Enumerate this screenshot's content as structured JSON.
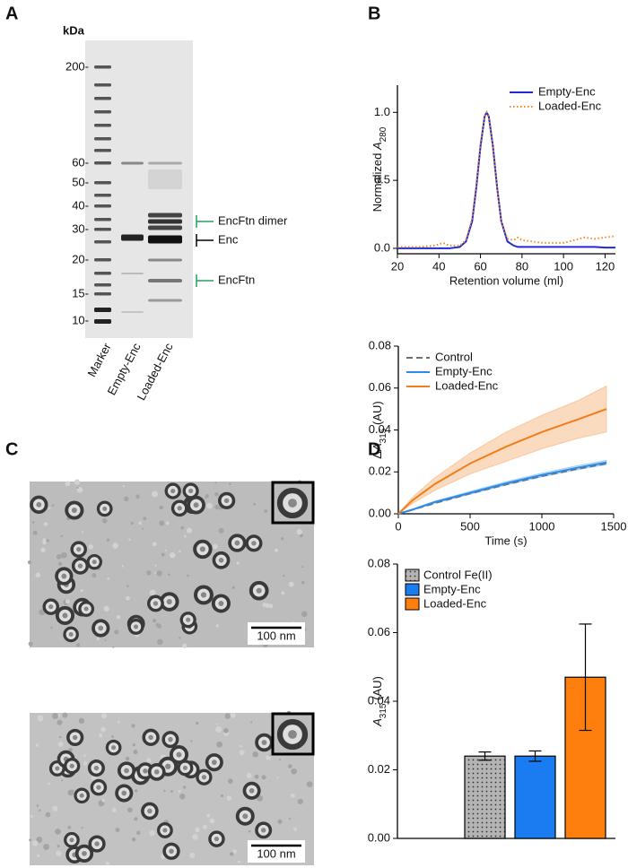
{
  "panels": [
    "A",
    "B",
    "C",
    "D"
  ],
  "gel": {
    "unit": "kDa",
    "markers": [
      "200-",
      "60-",
      "50-",
      "40-",
      "30-",
      "20-",
      "15-",
      "10-"
    ],
    "lanes": [
      "Marker",
      "Empty-Enc",
      "Loaded-Enc"
    ],
    "annotations": [
      {
        "label": "EncFtn dimer",
        "color": "#1ea55a"
      },
      {
        "label": "Enc",
        "color": "#000000"
      },
      {
        "label": "EncFtn",
        "color": "#1ea55a"
      }
    ]
  },
  "micrographs": {
    "scale_bars": [
      "100 nm",
      "100 nm"
    ]
  },
  "chart_data": [
    {
      "type": "line",
      "xlabel": "Retention volume (ml)",
      "ylabel": {
        "prefix": "Normalized ",
        "symbol": "A",
        "subscript": "280"
      },
      "x": [
        20,
        30,
        38,
        42,
        45,
        50,
        53,
        56,
        58,
        60,
        62,
        63,
        64,
        66,
        68,
        70,
        73,
        76,
        78,
        80,
        90,
        100,
        110,
        115,
        120,
        125
      ],
      "series": [
        {
          "name": "Empty-Enc",
          "color": "#1f2ad6",
          "style": "solid",
          "values": [
            0,
            0,
            0,
            0,
            0,
            0.01,
            0.05,
            0.2,
            0.45,
            0.75,
            0.97,
            1.0,
            0.97,
            0.75,
            0.45,
            0.2,
            0.05,
            0.02,
            0.01,
            0.01,
            0.01,
            0.01,
            0.01,
            0.01,
            0.005,
            0.005
          ]
        },
        {
          "name": "Loaded-Enc",
          "color": "#f08a1e",
          "style": "dotted",
          "values": [
            0.01,
            0.01,
            0.02,
            0.04,
            0.02,
            0.02,
            0.06,
            0.22,
            0.47,
            0.77,
            0.97,
            1.0,
            0.96,
            0.74,
            0.45,
            0.2,
            0.07,
            0.06,
            0.08,
            0.06,
            0.04,
            0.04,
            0.08,
            0.07,
            0.08,
            0.09
          ]
        }
      ],
      "xlim": [
        20,
        125
      ],
      "ylim": [
        -0.04,
        1.2
      ],
      "xticks": [
        20,
        40,
        60,
        80,
        100,
        120
      ],
      "yticks": [
        {
          "value": 0,
          "label": "0.0"
        },
        {
          "value": 0.5,
          "label": "0.5"
        },
        {
          "value": 1,
          "label": "1.0"
        }
      ],
      "legend": "upper right"
    },
    {
      "type": "line",
      "xlabel": "Time (s)",
      "ylabel": {
        "prefix": "Δ",
        "symbol": "A",
        "subscript": "315",
        "suffix": " (AU)"
      },
      "x": [
        0,
        100,
        250,
        500,
        750,
        1000,
        1250,
        1450
      ],
      "series": [
        {
          "name": "Control",
          "color": "#707070",
          "style": "dashed",
          "values": [
            0,
            0.002,
            0.005,
            0.0097,
            0.014,
            0.018,
            0.0215,
            0.024
          ]
        },
        {
          "name": "Empty-Enc",
          "color": "#2a8be8",
          "style": "solid",
          "values": [
            0,
            0.002,
            0.0055,
            0.01,
            0.0145,
            0.0185,
            0.022,
            0.0245
          ],
          "errors": [
            0,
            0.0003,
            0.0005,
            0.0007,
            0.0008,
            0.0009,
            0.001,
            0.001
          ]
        },
        {
          "name": "Loaded-Enc",
          "color": "#f07f1a",
          "style": "solid",
          "values": [
            0,
            0.0065,
            0.014,
            0.024,
            0.032,
            0.039,
            0.045,
            0.05
          ],
          "errors": [
            0,
            0.0015,
            0.003,
            0.005,
            0.007,
            0.008,
            0.009,
            0.011
          ]
        }
      ],
      "xlim": [
        0,
        1500
      ],
      "ylim": [
        0,
        0.08
      ],
      "xticks": [
        0,
        500,
        1000,
        1500
      ],
      "yticks": [
        {
          "value": 0,
          "label": "0.00"
        },
        {
          "value": 0.02,
          "label": "0.02"
        },
        {
          "value": 0.04,
          "label": "0.04"
        },
        {
          "value": 0.06,
          "label": "0.06"
        },
        {
          "value": 0.08,
          "label": "0.08"
        }
      ],
      "legend": "upper left"
    },
    {
      "type": "bar",
      "ylabel": {
        "symbol": "A",
        "subscript": "315",
        "suffix": " (AU)"
      },
      "categories": [
        "Control Fe(II)",
        "Empty-Enc",
        "Loaded-Enc"
      ],
      "values": [
        0.024,
        0.024,
        0.047
      ],
      "errors": [
        0.0012,
        0.0015,
        0.0155
      ],
      "colors": [
        "#b4b4b4",
        "#1a7cf0",
        "#ff7f0e"
      ],
      "patterns": [
        "dots",
        "solid",
        "solid"
      ],
      "ylim": [
        0,
        0.08
      ],
      "yticks": [
        {
          "value": 0,
          "label": "0.00"
        },
        {
          "value": 0.02,
          "label": "0.02"
        },
        {
          "value": 0.04,
          "label": "0.04"
        },
        {
          "value": 0.06,
          "label": "0.06"
        },
        {
          "value": 0.08,
          "label": "0.08"
        }
      ],
      "legend": "upper left"
    }
  ]
}
